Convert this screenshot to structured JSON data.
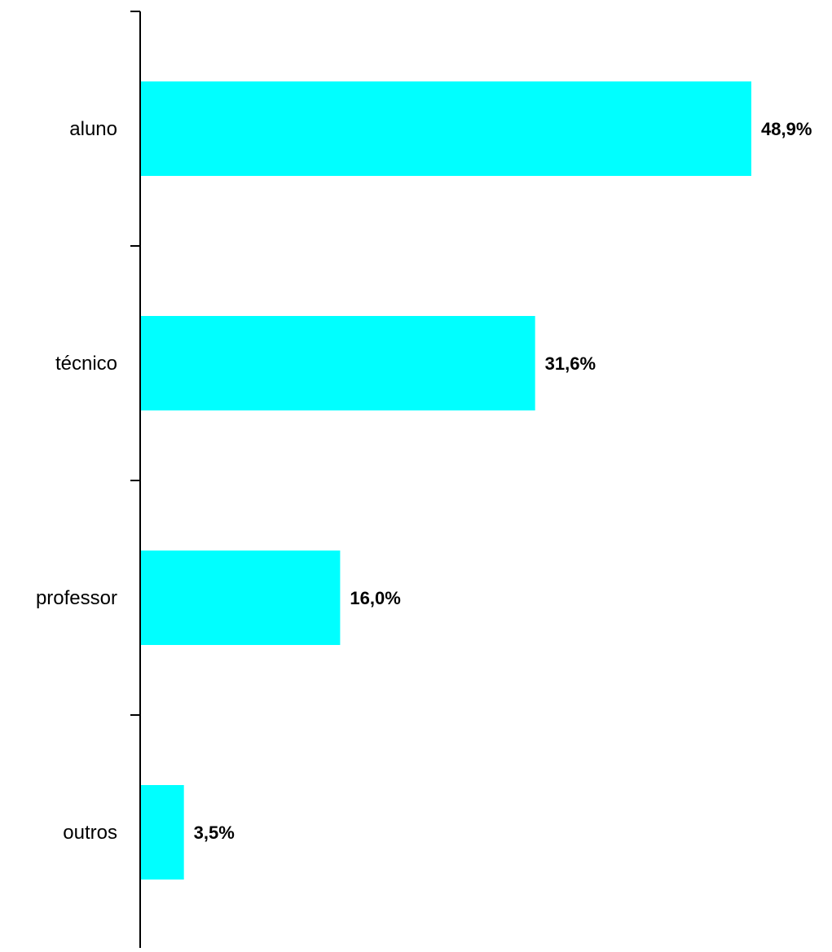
{
  "chart_data": {
    "type": "bar",
    "orientation": "horizontal",
    "categories": [
      "aluno",
      "técnico",
      "professor",
      "outros"
    ],
    "values": [
      48.9,
      31.6,
      16.0,
      3.5
    ],
    "value_labels": [
      "48,9%",
      "31,6%",
      "16,0%",
      "3,5%"
    ],
    "xlim": [
      0,
      50
    ],
    "grid": false,
    "legend": "none",
    "bar_color": "#00FFFF",
    "axis_color": "#000000"
  }
}
